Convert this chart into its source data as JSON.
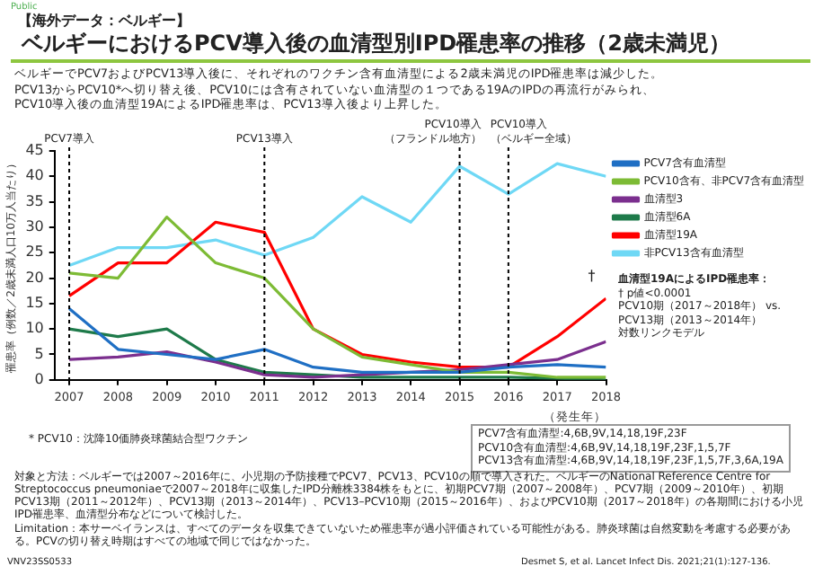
{
  "chart_data": {
    "type": "line",
    "title": "ベルギーにおけるPCV導入後の血清型別IPD罹患率の推移（2歳未満児）",
    "subtitle": "【海外データ：ベルギー】",
    "ylabel": "罹患率（例数／2歳未満人口10万人当たり）",
    "xlabel": "（発生年）",
    "x": [
      2007,
      2008,
      2009,
      2010,
      2011,
      2012,
      2013,
      2014,
      2015,
      2016,
      2017,
      2018
    ],
    "xlim": [
      2006.7,
      2018
    ],
    "xticks": [
      2007,
      2008,
      2009,
      2010,
      2011,
      2012,
      2013,
      2014,
      2015,
      2016,
      2017,
      2018
    ],
    "ylim": [
      0,
      45
    ],
    "yticks": [
      0,
      5,
      10,
      15,
      20,
      25,
      30,
      35,
      40,
      45
    ],
    "series": [
      {
        "name": "PCV7含有血清型",
        "color": "#1f6fc4",
        "values": [
          14,
          6,
          5,
          4,
          6,
          2.5,
          1.5,
          1.5,
          1.5,
          2.5,
          3,
          2.5
        ]
      },
      {
        "name": "PCV10含有、非PCV7含有血清型",
        "color": "#7dbb35",
        "values": [
          21,
          20,
          32,
          23,
          20,
          10,
          4.5,
          3,
          1.5,
          1.5,
          0.5,
          0.5
        ]
      },
      {
        "name": "血清型3",
        "color": "#7b2f8e",
        "values": [
          4,
          4.5,
          5.5,
          3.5,
          1,
          0.5,
          1,
          1.5,
          2,
          3,
          4,
          7.5
        ]
      },
      {
        "name": "血清型6A",
        "color": "#1e7a4a",
        "values": [
          10,
          8.5,
          10,
          4,
          1.5,
          1,
          0.5,
          0.5,
          0.5,
          0.5,
          0.3,
          0
        ]
      },
      {
        "name": "血清型19A",
        "color": "#ff0000",
        "values": [
          16.5,
          23,
          23,
          31,
          29,
          10,
          5,
          3.5,
          2.5,
          2.5,
          8.5,
          16
        ]
      },
      {
        "name": "非PCV13含有血清型",
        "color": "#6fd8f5",
        "values": [
          22.5,
          26,
          26,
          27.5,
          24.5,
          28,
          36,
          31,
          42,
          36.5,
          42.5,
          40
        ]
      }
    ],
    "ref_lines": [
      {
        "axis": "x",
        "value": 2007,
        "label": "PCV7導入",
        "color": "#000000",
        "line_style": "dotted"
      },
      {
        "axis": "x",
        "value": 2011,
        "label": "PCV13導入",
        "color": "#000000",
        "line_style": "dotted"
      },
      {
        "axis": "x",
        "value": 2015,
        "label": "PCV10導入（フランドル地方）",
        "color": "#000000",
        "line_style": "dotted"
      },
      {
        "axis": "x",
        "value": 2016,
        "label": "PCV10導入（ベルギー全域）",
        "color": "#000000",
        "line_style": "dotted"
      }
    ],
    "annotations": [
      "Public",
      "ベルギーでPCV7およびPCV13導入後に、それぞれのワクチン含有血清型による2歳未満児のIPD罹患率は減少した。",
      "PCV13からPCV10*へ切り替え後、PCV10には含有されていない血清型の１つである19AのIPDの再流行がみられ、",
      "PCV10導入後の血清型19AによるIPD罹患率は、PCV13導入後より上昇した。",
      "血清型19AによるIPD罹患率：",
      "† p値<0.0001",
      "PCV10期（2017～2018年） vs.",
      "PCV13期（2013～2014年）",
      "対数リンクモデル",
      {
        "text": "†",
        "x": 2018,
        "y": 16
      },
      "* PCV10：沈降10価肺炎球菌結合型ワクチン",
      "PCV7含有血清型:4,6B,9V,14,18,19F,23F",
      "PCV10含有血清型:4,6B,9V,14,18,19F,23F,1,5,7F",
      "PCV13含有血清型:4,6B,9V,14,18,19F,23F,1,5,7F,3,6A,19A",
      "対象と方法：ベルギーでは2007～2016年に、小児期の予防接種でPCV7、PCV13、PCV10の順で導入された。ベルギーのNational Reference Centre for Streptococcus pneumoniaeで2007～2018年に収集したIPD分離株3384株をもとに、初期PCV7期（2007～2008年）、PCV7期（2009～2010年）、初期PCV13期（2011～2012年）、PCV13期（2013～2014年）、PCV13–PCV10期（2015～2016年）、およびPCV10期（2017～2018年）の各期間における小児IPD罹患率、血清型分布などについて検討した。",
      "Limitation：本サーベイランスは、すべてのデータを収集できていないため罹患率が過小評価されている可能性がある。肺炎球菌は自然変動を考慮する必要がある。PCVの切り替え時期はすべての地域で同じではなかった。",
      "VNV23SS0533",
      "Desmet S, et al. Lancet Infect Dis. 2021;21(1):127-136."
    ],
    "grid": false,
    "legend": "right",
    "marker": "none",
    "line_style": "solid"
  }
}
